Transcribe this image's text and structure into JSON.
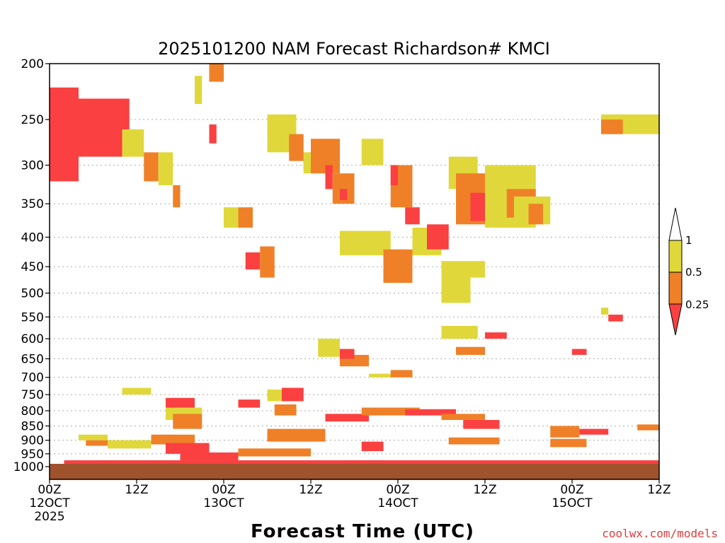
{
  "chart_data": {
    "type": "heatmap",
    "title": "2025101200 NAM Forecast Richardson# KMCI",
    "xlabel": "Forecast Time (UTC)",
    "ylabel": "",
    "credit": "coolwx.com/models",
    "y_axis": {
      "scale": "log-pressure",
      "reversed": true,
      "range_hPa": [
        1000,
        200
      ],
      "ticks": [
        "200",
        "250",
        "300",
        "350",
        "400",
        "450",
        "500",
        "550",
        "600",
        "650",
        "700",
        "750",
        "800",
        "850",
        "900",
        "950",
        "1000"
      ],
      "grid": "dotted"
    },
    "x_axis": {
      "range_forecast_hours": [
        0,
        84
      ],
      "ticks": [
        {
          "hour": 0,
          "line1": "00Z",
          "line2": "12OCT",
          "line3": "2025"
        },
        {
          "hour": 12,
          "line1": "12Z",
          "line2": "",
          "line3": ""
        },
        {
          "hour": 24,
          "line1": "00Z",
          "line2": "13OCT",
          "line3": ""
        },
        {
          "hour": 36,
          "line1": "12Z",
          "line2": "",
          "line3": ""
        },
        {
          "hour": 48,
          "line1": "00Z",
          "line2": "14OCT",
          "line3": ""
        },
        {
          "hour": 60,
          "line1": "12Z",
          "line2": "",
          "line3": ""
        },
        {
          "hour": 72,
          "line1": "00Z",
          "line2": "15OCT",
          "line3": ""
        },
        {
          "hour": 84,
          "line1": "12Z",
          "line2": "",
          "line3": ""
        }
      ]
    },
    "legend": {
      "placement": "right",
      "labels": [
        "1",
        "0.5",
        "0.25"
      ],
      "colors": {
        "above_1": "#ffffff",
        "c_0_5_to_1": "#e0d83a",
        "c_0_25_to_0_5": "#ef8028",
        "below_0_25": "#fa4040"
      }
    },
    "colors": {
      "ground": "#a0522d",
      "red": "#fa4040",
      "orange": "#ef8028",
      "yellow": "#e0d83a"
    },
    "regions": [
      {
        "cat": "red",
        "t": [
          0,
          4
        ],
        "p": [
          220,
          320
        ]
      },
      {
        "cat": "red",
        "t": [
          4,
          11
        ],
        "p": [
          230,
          290
        ]
      },
      {
        "cat": "yellow",
        "t": [
          10,
          13
        ],
        "p": [
          260,
          290
        ]
      },
      {
        "cat": "orange",
        "t": [
          13,
          15
        ],
        "p": [
          285,
          320
        ]
      },
      {
        "cat": "yellow",
        "t": [
          15,
          17
        ],
        "p": [
          285,
          325
        ]
      },
      {
        "cat": "orange",
        "t": [
          17,
          18
        ],
        "p": [
          325,
          355
        ]
      },
      {
        "cat": "yellow",
        "t": [
          20,
          21
        ],
        "p": [
          210,
          235
        ]
      },
      {
        "cat": "orange",
        "t": [
          22,
          24
        ],
        "p": [
          200,
          215
        ]
      },
      {
        "cat": "red",
        "t": [
          22,
          23
        ],
        "p": [
          255,
          275
        ]
      },
      {
        "cat": "yellow",
        "t": [
          24,
          26
        ],
        "p": [
          355,
          385
        ]
      },
      {
        "cat": "orange",
        "t": [
          26,
          28
        ],
        "p": [
          355,
          385
        ]
      },
      {
        "cat": "red",
        "t": [
          27,
          29
        ],
        "p": [
          425,
          455
        ]
      },
      {
        "cat": "orange",
        "t": [
          29,
          31
        ],
        "p": [
          415,
          470
        ]
      },
      {
        "cat": "yellow",
        "t": [
          30,
          34
        ],
        "p": [
          245,
          285
        ]
      },
      {
        "cat": "orange",
        "t": [
          33,
          35
        ],
        "p": [
          265,
          295
        ]
      },
      {
        "cat": "red",
        "t": [
          35,
          36
        ],
        "p": [
          285,
          305
        ]
      },
      {
        "cat": "yellow",
        "t": [
          35,
          40
        ],
        "p": [
          285,
          310
        ]
      },
      {
        "cat": "orange",
        "t": [
          36,
          40
        ],
        "p": [
          270,
          310
        ]
      },
      {
        "cat": "red",
        "t": [
          38,
          39
        ],
        "p": [
          300,
          330
        ]
      },
      {
        "cat": "orange",
        "t": [
          39,
          42
        ],
        "p": [
          310,
          350
        ]
      },
      {
        "cat": "red",
        "t": [
          40,
          41
        ],
        "p": [
          330,
          345
        ]
      },
      {
        "cat": "yellow",
        "t": [
          43,
          46
        ],
        "p": [
          270,
          300
        ]
      },
      {
        "cat": "orange",
        "t": [
          47,
          50
        ],
        "p": [
          300,
          355
        ]
      },
      {
        "cat": "red",
        "t": [
          47,
          48
        ],
        "p": [
          300,
          325
        ]
      },
      {
        "cat": "yellow",
        "t": [
          40,
          47
        ],
        "p": [
          390,
          430
        ]
      },
      {
        "cat": "orange",
        "t": [
          46,
          50
        ],
        "p": [
          420,
          480
        ]
      },
      {
        "cat": "red",
        "t": [
          49,
          51
        ],
        "p": [
          355,
          380
        ]
      },
      {
        "cat": "yellow",
        "t": [
          50,
          54
        ],
        "p": [
          385,
          430
        ]
      },
      {
        "cat": "red",
        "t": [
          52,
          55
        ],
        "p": [
          380,
          420
        ]
      },
      {
        "cat": "yellow",
        "t": [
          55,
          59
        ],
        "p": [
          290,
          330
        ]
      },
      {
        "cat": "orange",
        "t": [
          56,
          60
        ],
        "p": [
          310,
          380
        ]
      },
      {
        "cat": "red",
        "t": [
          58,
          60
        ],
        "p": [
          335,
          375
        ]
      },
      {
        "cat": "yellow",
        "t": [
          60,
          67
        ],
        "p": [
          300,
          385
        ]
      },
      {
        "cat": "orange",
        "t": [
          63,
          67
        ],
        "p": [
          330,
          370
        ]
      },
      {
        "cat": "yellow",
        "t": [
          64,
          69
        ],
        "p": [
          340,
          380
        ]
      },
      {
        "cat": "orange",
        "t": [
          66,
          68
        ],
        "p": [
          350,
          380
        ]
      },
      {
        "cat": "yellow",
        "t": [
          54,
          58
        ],
        "p": [
          470,
          520
        ]
      },
      {
        "cat": "yellow",
        "t": [
          54,
          59
        ],
        "p": [
          570,
          600
        ]
      },
      {
        "cat": "orange",
        "t": [
          56,
          60
        ],
        "p": [
          620,
          640
        ]
      },
      {
        "cat": "red",
        "t": [
          60,
          63
        ],
        "p": [
          585,
          600
        ]
      },
      {
        "cat": "yellow",
        "t": [
          76,
          84
        ],
        "p": [
          245,
          265
        ]
      },
      {
        "cat": "orange",
        "t": [
          76,
          79
        ],
        "p": [
          250,
          265
        ]
      },
      {
        "cat": "yellow",
        "t": [
          76,
          77
        ],
        "p": [
          530,
          545
        ]
      },
      {
        "cat": "red",
        "t": [
          77,
          79
        ],
        "p": [
          545,
          560
        ]
      },
      {
        "cat": "red",
        "t": [
          72,
          74
        ],
        "p": [
          625,
          640
        ]
      },
      {
        "cat": "yellow",
        "t": [
          37,
          40
        ],
        "p": [
          600,
          645
        ]
      },
      {
        "cat": "orange",
        "t": [
          40,
          44
        ],
        "p": [
          640,
          670
        ]
      },
      {
        "cat": "red",
        "t": [
          40,
          42
        ],
        "p": [
          625,
          650
        ]
      },
      {
        "cat": "yellow",
        "t": [
          44,
          48
        ],
        "p": [
          690,
          700
        ]
      },
      {
        "cat": "orange",
        "t": [
          47,
          50
        ],
        "p": [
          680,
          700
        ]
      },
      {
        "cat": "yellow",
        "t": [
          10,
          14
        ],
        "p": [
          730,
          750
        ]
      },
      {
        "cat": "red",
        "t": [
          16,
          20
        ],
        "p": [
          760,
          790
        ]
      },
      {
        "cat": "yellow",
        "t": [
          16,
          21
        ],
        "p": [
          790,
          830
        ]
      },
      {
        "cat": "orange",
        "t": [
          17,
          21
        ],
        "p": [
          810,
          860
        ]
      },
      {
        "cat": "red",
        "t": [
          26,
          29
        ],
        "p": [
          765,
          790
        ]
      },
      {
        "cat": "yellow",
        "t": [
          30,
          34
        ],
        "p": [
          735,
          770
        ]
      },
      {
        "cat": "red",
        "t": [
          32,
          35
        ],
        "p": [
          730,
          770
        ]
      },
      {
        "cat": "orange",
        "t": [
          31,
          34
        ],
        "p": [
          780,
          815
        ]
      },
      {
        "cat": "red",
        "t": [
          38,
          44
        ],
        "p": [
          810,
          835
        ]
      },
      {
        "cat": "orange",
        "t": [
          43,
          51
        ],
        "p": [
          790,
          815
        ]
      },
      {
        "cat": "red",
        "t": [
          49,
          56
        ],
        "p": [
          795,
          815
        ]
      },
      {
        "cat": "orange",
        "t": [
          54,
          60
        ],
        "p": [
          810,
          830
        ]
      },
      {
        "cat": "red",
        "t": [
          57,
          62
        ],
        "p": [
          830,
          860
        ]
      },
      {
        "cat": "orange",
        "t": [
          69,
          73
        ],
        "p": [
          850,
          890
        ]
      },
      {
        "cat": "red",
        "t": [
          73,
          77
        ],
        "p": [
          860,
          880
        ]
      },
      {
        "cat": "orange",
        "t": [
          81,
          84
        ],
        "p": [
          845,
          865
        ]
      },
      {
        "cat": "yellow",
        "t": [
          4,
          8
        ],
        "p": [
          880,
          900
        ]
      },
      {
        "cat": "orange",
        "t": [
          5,
          9
        ],
        "p": [
          900,
          920
        ]
      },
      {
        "cat": "yellow",
        "t": [
          8,
          14
        ],
        "p": [
          900,
          930
        ]
      },
      {
        "cat": "orange",
        "t": [
          14,
          20
        ],
        "p": [
          880,
          915
        ]
      },
      {
        "cat": "red",
        "t": [
          16,
          22
        ],
        "p": [
          910,
          950
        ]
      },
      {
        "cat": "orange",
        "t": [
          30,
          38
        ],
        "p": [
          860,
          905
        ]
      },
      {
        "cat": "red",
        "t": [
          43,
          46
        ],
        "p": [
          905,
          940
        ]
      },
      {
        "cat": "orange",
        "t": [
          55,
          62
        ],
        "p": [
          890,
          915
        ]
      },
      {
        "cat": "orange",
        "t": [
          69,
          74
        ],
        "p": [
          895,
          925
        ]
      },
      {
        "cat": "red",
        "t": [
          18,
          26
        ],
        "p": [
          945,
          975
        ]
      },
      {
        "cat": "red",
        "t": [
          2,
          84
        ],
        "p": [
          975,
          1000
        ]
      },
      {
        "cat": "orange",
        "t": [
          26,
          36
        ],
        "p": [
          930,
          960
        ]
      },
      {
        "cat": "yellow",
        "t": [
          54,
          60
        ],
        "p": [
          440,
          470
        ]
      }
    ]
  }
}
